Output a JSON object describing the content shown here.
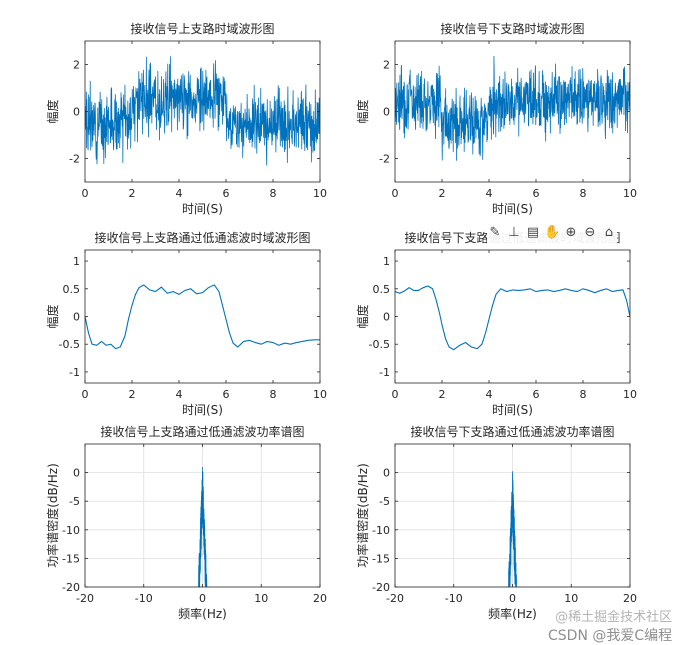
{
  "chart_data": [
    {
      "type": "line",
      "title": "接收信号上支路时域波形图",
      "xlabel": "时间(S)",
      "ylabel": "幅度",
      "xlim": [
        0,
        10
      ],
      "ylim": [
        -3,
        3
      ],
      "xticks": [
        0,
        2,
        4,
        6,
        8,
        10
      ],
      "yticks": [
        -2,
        0,
        2
      ],
      "color": "#0072bd",
      "grid": false,
      "signal": {
        "kind": "noisy_square",
        "segments": [
          {
            "x0": 0,
            "x1": 2,
            "level": -0.5
          },
          {
            "x0": 2,
            "x1": 6,
            "level": 0.5
          },
          {
            "x0": 6,
            "x1": 10,
            "level": -0.5
          }
        ],
        "noise_amplitude": 1.0,
        "seed": 3
      }
    },
    {
      "type": "line",
      "title": "接收信号下支路时域波形图",
      "xlabel": "时间(S)",
      "ylabel": "幅度",
      "xlim": [
        0,
        10
      ],
      "ylim": [
        -3,
        3
      ],
      "xticks": [
        0,
        2,
        4,
        6,
        8,
        10
      ],
      "yticks": [
        -2,
        0,
        2
      ],
      "color": "#0072bd",
      "grid": false,
      "signal": {
        "kind": "noisy_square",
        "segments": [
          {
            "x0": 0,
            "x1": 2,
            "level": 0.5
          },
          {
            "x0": 2,
            "x1": 4,
            "level": -0.5
          },
          {
            "x0": 4,
            "x1": 10,
            "level": 0.5
          }
        ],
        "noise_amplitude": 1.0,
        "seed": 7
      }
    },
    {
      "type": "line",
      "title": "接收信号上支路通过低通滤波时域波形图",
      "xlabel": "时间(S)",
      "ylabel": "幅度",
      "xlim": [
        0,
        10
      ],
      "ylim": [
        -1.2,
        1.2
      ],
      "xticks": [
        0,
        2,
        4,
        6,
        8,
        10
      ],
      "yticks": [
        -1,
        -0.5,
        0,
        0.5,
        1
      ],
      "color": "#0072bd",
      "grid": false,
      "x": [
        0,
        0.15,
        0.3,
        0.5,
        0.7,
        0.9,
        1.1,
        1.3,
        1.5,
        1.7,
        1.85,
        2.0,
        2.15,
        2.3,
        2.5,
        2.75,
        3.0,
        3.25,
        3.5,
        3.75,
        4.0,
        4.25,
        4.5,
        4.75,
        5.0,
        5.25,
        5.5,
        5.7,
        5.85,
        6.0,
        6.15,
        6.3,
        6.5,
        6.75,
        7.0,
        7.25,
        7.5,
        7.75,
        8.0,
        8.25,
        8.5,
        8.75,
        9.0,
        9.25,
        9.5,
        9.75,
        10.0
      ],
      "y": [
        0,
        -0.3,
        -0.5,
        -0.52,
        -0.45,
        -0.52,
        -0.5,
        -0.58,
        -0.55,
        -0.35,
        -0.05,
        0.2,
        0.4,
        0.52,
        0.57,
        0.48,
        0.45,
        0.53,
        0.42,
        0.45,
        0.4,
        0.47,
        0.5,
        0.41,
        0.43,
        0.52,
        0.57,
        0.45,
        0.2,
        -0.05,
        -0.3,
        -0.48,
        -0.55,
        -0.45,
        -0.43,
        -0.47,
        -0.5,
        -0.45,
        -0.47,
        -0.52,
        -0.48,
        -0.5,
        -0.47,
        -0.45,
        -0.43,
        -0.42,
        -0.42
      ]
    },
    {
      "type": "line",
      "title": "接收信号下支路通过低通滤波时域波形图",
      "xlabel": "时间(S)",
      "ylabel": "幅度",
      "xlim": [
        0,
        10
      ],
      "ylim": [
        -1.2,
        1.2
      ],
      "xticks": [
        0,
        2,
        4,
        6,
        8,
        10
      ],
      "yticks": [
        -1,
        -0.5,
        0,
        0.5,
        1
      ],
      "color": "#0072bd",
      "grid": false,
      "x": [
        0,
        0.2,
        0.4,
        0.6,
        0.8,
        1.0,
        1.2,
        1.4,
        1.6,
        1.75,
        1.9,
        2.0,
        2.15,
        2.3,
        2.5,
        2.75,
        3.0,
        3.25,
        3.5,
        3.7,
        3.85,
        4.0,
        4.15,
        4.3,
        4.5,
        4.75,
        5.0,
        5.25,
        5.5,
        5.75,
        6.0,
        6.25,
        6.5,
        6.75,
        7.0,
        7.25,
        7.5,
        7.75,
        8.0,
        8.25,
        8.5,
        8.75,
        9.0,
        9.25,
        9.5,
        9.7,
        9.85,
        10.0
      ],
      "y": [
        0.45,
        0.42,
        0.46,
        0.52,
        0.47,
        0.47,
        0.52,
        0.55,
        0.5,
        0.3,
        0.05,
        -0.15,
        -0.4,
        -0.55,
        -0.6,
        -0.52,
        -0.47,
        -0.55,
        -0.58,
        -0.5,
        -0.3,
        -0.05,
        0.2,
        0.4,
        0.5,
        0.45,
        0.48,
        0.47,
        0.48,
        0.5,
        0.45,
        0.47,
        0.48,
        0.45,
        0.47,
        0.5,
        0.47,
        0.45,
        0.5,
        0.47,
        0.43,
        0.47,
        0.5,
        0.45,
        0.47,
        0.48,
        0.3,
        0.0
      ]
    },
    {
      "type": "line",
      "title": "接收信号上支路通过低通滤波功率谱图",
      "xlabel": "频率(Hz)",
      "ylabel": "功率谱密度(dB/Hz)",
      "xlim": [
        -20,
        20
      ],
      "ylim": [
        -20,
        5
      ],
      "xticks": [
        -20,
        -10,
        0,
        10,
        20
      ],
      "yticks": [
        -20,
        -15,
        -10,
        -5,
        0
      ],
      "color": "#0072bd",
      "grid": true,
      "spectrum": {
        "kind": "narrow_peak",
        "center": 0,
        "peak_db": 2.0,
        "floor_db": -20,
        "half_width_hz": 0.8,
        "seed": 11
      }
    },
    {
      "type": "line",
      "title": "接收信号下支路通过低通滤波功率谱图",
      "xlabel": "频率(Hz)",
      "ylabel": "功率谱密度(dB/Hz)",
      "xlim": [
        -20,
        20
      ],
      "ylim": [
        -20,
        5
      ],
      "xticks": [
        -20,
        -10,
        0,
        10,
        20
      ],
      "yticks": [
        -20,
        -15,
        -10,
        -5,
        0
      ],
      "color": "#0072bd",
      "grid": true,
      "spectrum": {
        "kind": "narrow_peak",
        "center": 0,
        "peak_db": 1.0,
        "floor_db": -20,
        "half_width_hz": 0.8,
        "seed": 19
      }
    }
  ],
  "toolbar": {
    "icons": [
      "brush-icon",
      "data-cursor-icon",
      "legend-icon",
      "pan-hand-icon",
      "zoom-in-icon",
      "zoom-out-icon",
      "home-icon"
    ],
    "glyphs": [
      "✎",
      "⊥",
      "▤",
      "✋",
      "⊕",
      "⊖",
      "⌂"
    ]
  },
  "watermark": {
    "line1": "@稀土掘金技术社区",
    "line2": "CSDN @我爱C编程"
  }
}
